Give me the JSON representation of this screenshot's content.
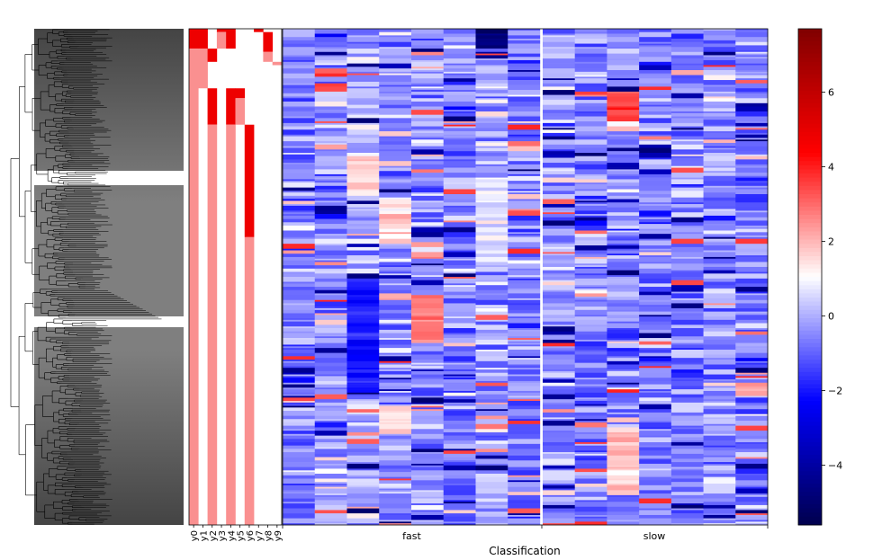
{
  "chart_data": {
    "type": "heatmap",
    "title": "",
    "xlabel": "Classification",
    "ylabel": "",
    "groups": [
      {
        "label": "fast",
        "columns": 8
      },
      {
        "label": "slow",
        "columns": 7
      }
    ],
    "n_rows": 300,
    "annotation_columns": [
      "y0",
      "y1",
      "y2",
      "y3",
      "y4",
      "y5",
      "y6",
      "y7",
      "y8",
      "y9"
    ],
    "colorbar": {
      "colormap": "seismic",
      "vmin": -5.6,
      "vmax": 7.7,
      "ticks": [
        -4,
        -2,
        0,
        2,
        4,
        6
      ],
      "tick_labels": [
        "−4",
        "−2",
        "0",
        "2",
        "4",
        "6"
      ]
    },
    "colors": {
      "annotation_strong": "#ee0000",
      "annotation_light": "#fa9090",
      "dendrogram_line": "#000000",
      "gray_dark": "#444444",
      "gray_light": "#7f7f7f"
    }
  }
}
